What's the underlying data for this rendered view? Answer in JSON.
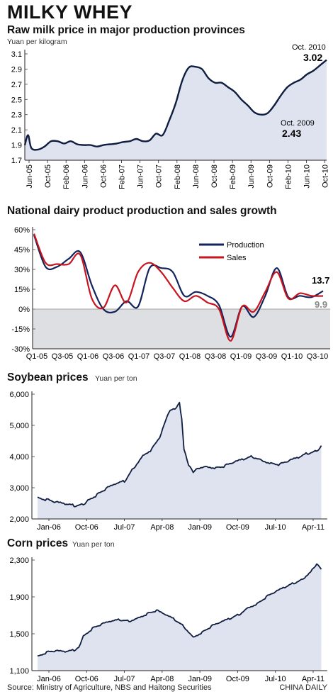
{
  "page_title": "MILKY WHEY",
  "source": "Source: Ministry of Agriculture, NBS and Haitong Securities",
  "credit": "CHINA DAILY",
  "colors": {
    "fill": "#dfe3ef",
    "line": "#0f1d40",
    "production": "#13235c",
    "sales": "#c8141e",
    "negative_band": "#dedfe3"
  },
  "chart_data": [
    {
      "type": "area",
      "title": "Raw milk price in major production provinces",
      "ylabel": "Yuan per kilogram",
      "ylim": [
        1.7,
        3.1
      ],
      "yticks": [
        "1.7",
        "1.9",
        "2.1",
        "2.3",
        "2.5",
        "2.7",
        "2.9",
        "3.1"
      ],
      "xtick_labels": [
        "Jun-05",
        "Oct-05",
        "Feb-06",
        "Jun-06",
        "Oct-06",
        "Feb-07",
        "Jun-07",
        "Oct-07",
        "Feb-08",
        "Jun-08",
        "Oct-08",
        "Feb-09",
        "Jun-09",
        "Oct-09",
        "Feb-10",
        "Jun-10",
        "Oct-10"
      ],
      "grid": false,
      "series": [
        {
          "values": [
            [
              0,
              1.9
            ],
            [
              0.5,
              2.03
            ],
            [
              1,
              1.86
            ],
            [
              2,
              1.84
            ],
            [
              3,
              1.88
            ],
            [
              4,
              1.95
            ],
            [
              5,
              1.95
            ],
            [
              6,
              1.92
            ],
            [
              7,
              1.95
            ],
            [
              8,
              1.91
            ],
            [
              9,
              1.9
            ],
            [
              10,
              1.9
            ],
            [
              11,
              1.88
            ],
            [
              12,
              1.9
            ],
            [
              13,
              1.91
            ],
            [
              14,
              1.92
            ],
            [
              15,
              1.94
            ],
            [
              16,
              1.95
            ],
            [
              17,
              1.98
            ],
            [
              18,
              1.95
            ],
            [
              19,
              1.96
            ],
            [
              20,
              2.05
            ],
            [
              21,
              2.03
            ],
            [
              22,
              2.22
            ],
            [
              23,
              2.45
            ],
            [
              24,
              2.75
            ],
            [
              25,
              2.92
            ],
            [
              26,
              2.93
            ],
            [
              27,
              2.9
            ],
            [
              28,
              2.78
            ],
            [
              29,
              2.72
            ],
            [
              30,
              2.72
            ],
            [
              31,
              2.66
            ],
            [
              32,
              2.6
            ],
            [
              33,
              2.5
            ],
            [
              34,
              2.42
            ],
            [
              35,
              2.33
            ],
            [
              36,
              2.3
            ],
            [
              37,
              2.32
            ],
            [
              38,
              2.42
            ],
            [
              39,
              2.55
            ],
            [
              40,
              2.66
            ],
            [
              41,
              2.72
            ],
            [
              42,
              2.76
            ],
            [
              43,
              2.83
            ],
            [
              44,
              2.88
            ],
            [
              45,
              2.95
            ],
            [
              46,
              3.02
            ]
          ]
        }
      ],
      "annotations": [
        {
          "label": "Oct. 2010",
          "value": "3.02"
        },
        {
          "label": "Oct. 2009",
          "value": "2.43"
        }
      ]
    },
    {
      "type": "line",
      "title": "National dairy product production and sales growth",
      "yticks": [
        "60%",
        "45%",
        "30%",
        "15%",
        "0%",
        "-15%",
        "-30%"
      ],
      "ylim": [
        -30,
        60
      ],
      "xtick_labels": [
        "Q1-05",
        "Q3-05",
        "Q1-06",
        "Q3-06",
        "Q1-07",
        "Q3-07",
        "Q1-08",
        "Q3-08",
        "Q1-09",
        "Q3-09",
        "Q1-10",
        "Q3-10"
      ],
      "legend": "top-right",
      "grid": false,
      "series": [
        {
          "name": "Production",
          "values": [
            [
              0,
              56
            ],
            [
              1,
              32
            ],
            [
              2,
              32
            ],
            [
              3,
              38
            ],
            [
              4,
              43
            ],
            [
              5,
              18
            ],
            [
              6,
              0
            ],
            [
              7,
              -2
            ],
            [
              8,
              6
            ],
            [
              9,
              2
            ],
            [
              10,
              31
            ],
            [
              11,
              31
            ],
            [
              12,
              28
            ],
            [
              13,
              10
            ],
            [
              14,
              13
            ],
            [
              15,
              10
            ],
            [
              16,
              3
            ],
            [
              17,
              -21
            ],
            [
              18,
              2
            ],
            [
              19,
              -6
            ],
            [
              20,
              10
            ],
            [
              21,
              31
            ],
            [
              22,
              9
            ],
            [
              23,
              10
            ],
            [
              24,
              9
            ],
            [
              25,
              13.7
            ]
          ]
        },
        {
          "name": "Sales",
          "values": [
            [
              0,
              57
            ],
            [
              1,
              35
            ],
            [
              2,
              34
            ],
            [
              3,
              34
            ],
            [
              4,
              41
            ],
            [
              5,
              8
            ],
            [
              6,
              1
            ],
            [
              7,
              18
            ],
            [
              8,
              5
            ],
            [
              9,
              28
            ],
            [
              10,
              35
            ],
            [
              11,
              28
            ],
            [
              12,
              16
            ],
            [
              13,
              6
            ],
            [
              14,
              10
            ],
            [
              15,
              5
            ],
            [
              16,
              0
            ],
            [
              17,
              -24
            ],
            [
              18,
              2
            ],
            [
              19,
              -2
            ],
            [
              20,
              13
            ],
            [
              21,
              28
            ],
            [
              22,
              8
            ],
            [
              23,
              12
            ],
            [
              24,
              10
            ],
            [
              25,
              9.9
            ]
          ]
        }
      ],
      "annotations": [
        {
          "value": "13.7"
        },
        {
          "value": "9.9"
        }
      ]
    },
    {
      "type": "area",
      "title": "Soybean prices",
      "ylabel": "Yuan per ton",
      "ylim": [
        2000,
        6000
      ],
      "yticks": [
        "2,000",
        "3,000",
        "4,000",
        "5,000",
        "6,000"
      ],
      "xtick_labels": [
        "Jan-06",
        "Oct-06",
        "Jul-07",
        "Apr-08",
        "Jan-09",
        "Oct-09",
        "Jul-10",
        "Apr-11"
      ],
      "grid": false,
      "series": [
        {
          "values": [
            [
              0,
              2700
            ],
            [
              2,
              2620
            ],
            [
              4,
              2520
            ],
            [
              6,
              2460
            ],
            [
              8,
              2420
            ],
            [
              10,
              2480
            ],
            [
              11,
              2620
            ],
            [
              13,
              2780
            ],
            [
              15,
              2960
            ],
            [
              17,
              3100
            ],
            [
              19,
              3200
            ],
            [
              21,
              3650
            ],
            [
              23,
              4050
            ],
            [
              25,
              4250
            ],
            [
              27,
              4700
            ],
            [
              28,
              5150
            ],
            [
              29,
              5500
            ],
            [
              30,
              5550
            ],
            [
              31,
              5750
            ],
            [
              31.5,
              5200
            ],
            [
              32,
              4200
            ],
            [
              33,
              3700
            ],
            [
              34,
              3500
            ],
            [
              35,
              3650
            ],
            [
              37,
              3700
            ],
            [
              39,
              3650
            ],
            [
              41,
              3700
            ],
            [
              43,
              3800
            ],
            [
              45,
              3900
            ],
            [
              47,
              4000
            ],
            [
              49,
              3900
            ],
            [
              51,
              3800
            ],
            [
              53,
              3750
            ],
            [
              55,
              3850
            ],
            [
              57,
              3950
            ],
            [
              59,
              4100
            ],
            [
              61,
              4200
            ],
            [
              62,
              4350
            ]
          ]
        }
      ]
    },
    {
      "type": "area",
      "title": "Corn prices",
      "ylabel": "Yuan per ton",
      "ylim": [
        1100,
        2300
      ],
      "yticks": [
        "1,100",
        "1,500",
        "1,900",
        "2,300"
      ],
      "xtick_labels": [
        "Jan-06",
        "Oct-06",
        "Jul-07",
        "Apr-08",
        "Jan-09",
        "Oct-09",
        "Jul-10",
        "Apr-11"
      ],
      "grid": false,
      "series": [
        {
          "values": [
            [
              0,
              1260
            ],
            [
              2,
              1300
            ],
            [
              4,
              1310
            ],
            [
              6,
              1300
            ],
            [
              8,
              1320
            ],
            [
              9,
              1360
            ],
            [
              10,
              1480
            ],
            [
              12,
              1560
            ],
            [
              14,
              1600
            ],
            [
              16,
              1630
            ],
            [
              18,
              1650
            ],
            [
              20,
              1640
            ],
            [
              22,
              1680
            ],
            [
              24,
              1720
            ],
            [
              26,
              1750
            ],
            [
              28,
              1700
            ],
            [
              30,
              1650
            ],
            [
              32,
              1580
            ],
            [
              34,
              1470
            ],
            [
              36,
              1520
            ],
            [
              38,
              1580
            ],
            [
              40,
              1620
            ],
            [
              42,
              1660
            ],
            [
              44,
              1710
            ],
            [
              46,
              1790
            ],
            [
              48,
              1830
            ],
            [
              50,
              1900
            ],
            [
              52,
              1950
            ],
            [
              54,
              2000
            ],
            [
              56,
              2050
            ],
            [
              58,
              2100
            ],
            [
              60,
              2200
            ],
            [
              61,
              2250
            ],
            [
              62,
              2200
            ]
          ]
        }
      ]
    }
  ]
}
